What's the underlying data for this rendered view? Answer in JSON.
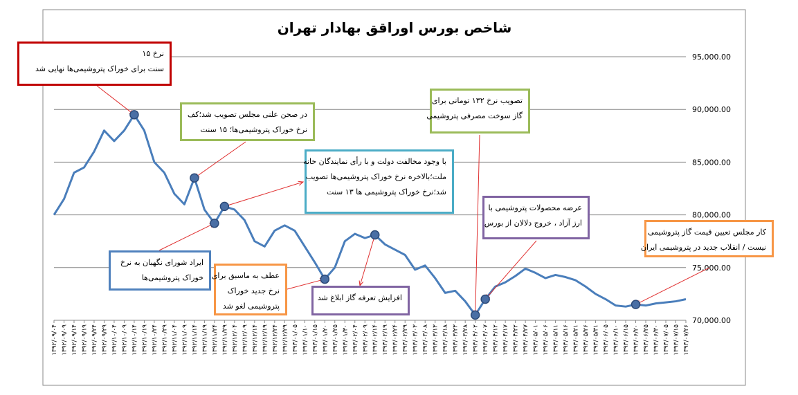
{
  "chart_data": {
    "type": "line",
    "title": "شاخص بورس اوراقق بهادار تهران",
    "categories": [
      "۱۳۹۲/۰۹/۰۴",
      "۱۳۹۲/۰۹/۰۹",
      "۱۳۹۲/۰۹/۱۴",
      "۱۳۹۲/۰۹/۱۹",
      "۱۳۹۲/۰۹/۲۴",
      "۱۳۹۲/۰۹/۲۹",
      "۱۳۹۲/۱۰/۰۴",
      "۱۳۹۲/۱۰/۰۹",
      "۱۳۹۲/۱۰/۱۴",
      "۱۳۹۲/۱۰/۱۹",
      "۱۳۹۲/۱۰/۲۴",
      "۱۳۹۲/۱۰/۲۹",
      "۱۳۹۲/۱۱/۰۴",
      "۱۳۹۲/۱۱/۰۹",
      "۱۳۹۲/۱۱/۱۴",
      "۱۳۹۲/۱۱/۱۹",
      "۱۳۹۲/۱۱/۲۴",
      "۱۳۹۲/۱۱/۲۹",
      "۱۳۹۲/۱۲/۰۴",
      "۱۳۹۲/۱۲/۰۹",
      "۱۳۹۲/۱۲/۱۴",
      "۱۳۹۲/۱۲/۱۹",
      "۱۳۹۲/۱۲/۲۴",
      "۱۳۹۲/۱۲/۲۹",
      "۱۳۹۳/۰۱/۰۵",
      "۱۳۹۳/۰۱/۱۰",
      "۱۳۹۳/۰۱/۱۵",
      "۱۳۹۳/۰۱/۲۰",
      "۱۳۹۳/۰۱/۲۵",
      "۱۳۹۳/۰۱/۳۰",
      "۱۳۹۳/۰۲/۰۴",
      "۱۳۹۳/۰۲/۰۹",
      "۱۳۹۳/۰۲/۱۴",
      "۱۳۹۳/۰۲/۱۹",
      "۱۳۹۳/۰۲/۲۴",
      "۱۳۹۳/۰۲/۲۹",
      "۱۳۹۳/۰۳/۰۳",
      "۱۳۹۳/۰۳/۰۸",
      "۱۳۹۳/۰۳/۱۳",
      "۱۳۹۳/۰۳/۱۸",
      "۱۳۹۳/۰۳/۲۳",
      "۱۳۹۳/۰۳/۲۸",
      "۱۳۹۳/۰۴/۰۲",
      "۱۳۹۳/۰۴/۰۷",
      "۱۳۹۳/۰۴/۱۲",
      "۱۳۹۳/۰۴/۱۷",
      "۱۳۹۳/۰۴/۲۲",
      "۱۳۹۳/۰۴/۲۷",
      "۱۳۹۳/۰۵/۰۱",
      "۱۳۹۳/۰۵/۰۶",
      "۱۳۹۳/۰۵/۱۱",
      "۱۳۹۳/۰۵/۱۶",
      "۱۳۹۳/۰۵/۲۱",
      "۱۳۹۳/۰۵/۲۶",
      "۱۳۹۳/۰۵/۳۱",
      "۱۳۹۳/۰۶/۰۵",
      "۱۳۹۳/۰۶/۱۰",
      "۱۳۹۳/۰۶/۱۵",
      "۱۳۹۳/۰۶/۲۰",
      "۱۳۹۳/۰۶/۲۵",
      "۱۳۹۳/۰۶/۳۰",
      "۱۳۹۳/۰۷/۰۵",
      "۱۳۹۳/۰۷/۱۵",
      "۱۳۹۳/۰۷/۲۶"
    ],
    "series": [
      {
        "color": "#4a7ebb",
        "values": [
          80000,
          81500,
          84000,
          84500,
          86000,
          88000,
          87000,
          88000,
          89500,
          88000,
          85000,
          84000,
          82000,
          81000,
          83500,
          80500,
          79200,
          80800,
          80500,
          79500,
          77500,
          77000,
          78500,
          79000,
          78500,
          77000,
          75500,
          73900,
          75000,
          77500,
          78200,
          77800,
          78100,
          77200,
          76700,
          76200,
          74800,
          75200,
          74000,
          72600,
          72800,
          71800,
          70500,
          72000,
          73200,
          73600,
          74200,
          74900,
          74500,
          74000,
          74300,
          74100,
          73800,
          73200,
          72500,
          72000,
          71400,
          71300,
          71500,
          71400,
          71600,
          71700,
          71800,
          72000
        ]
      }
    ],
    "ylim": [
      70000,
      95000
    ],
    "yticks": [
      {
        "value": 70000,
        "label": "70,000.00"
      },
      {
        "value": 75000,
        "label": "75,000.00"
      },
      {
        "value": 80000,
        "label": "80,000.00"
      },
      {
        "value": 85000,
        "label": "85,000.00"
      },
      {
        "value": 90000,
        "label": "90,000.00"
      },
      {
        "value": 95000,
        "label": "95,000.00"
      }
    ],
    "grid": true,
    "annotations": [
      {
        "lines": [
          "نرخ ۱۵",
          "سنت برای خوراک پتروشیمی‌ها نهایی شد"
        ],
        "color": "#c00000"
      },
      {
        "lines": [
          "در صحن علنی مجلس تصویب شد؛کف",
          "نرخ خوراک پتروشیمی‌ها؛ ۱۵ سنت"
        ],
        "color": "#9bbb59"
      },
      {
        "lines": [
          "با وجود مخالفت دولت و با رأی نمایندگان خانه",
          "ملت؛بالاخره نرخ خوراک پتروشیمی‌ها تصویب",
          "شد؛نرخ خوراک پتروشیمی ها ۱۳ سنت"
        ],
        "color": "#4bacc6"
      },
      {
        "lines": [
          "ایراد شورای نگهبان به نرخ",
          "خوراک پتروشیمی‌ها"
        ],
        "color": "#4f81bd"
      },
      {
        "lines": [
          "عطف به ماسبق برای",
          "نرخ جدید خوراک",
          "پتروشیمی لغو شد"
        ],
        "color": "#f79646"
      },
      {
        "lines": [
          "افزایش تعرفه گاز ابلاغ شد"
        ],
        "color": "#8064a2"
      },
      {
        "lines": [
          "تصویب نرخ ۱۳۲ تومانی برای",
          "گاز سوخت مصرفی پتروشیمی"
        ],
        "color": "#9bbb59"
      },
      {
        "lines": [
          "عرضه محصولات پتروشیمی با",
          "ارز آزاد ، خروج دلالان از بورس"
        ],
        "color": "#8064a2"
      },
      {
        "lines": [
          "کار مجلس تعیین قیمت گاز پتروشیمی",
          "نیست / انقلاب جدید در پتروشیمی ایران"
        ],
        "color": "#f79646"
      }
    ]
  }
}
